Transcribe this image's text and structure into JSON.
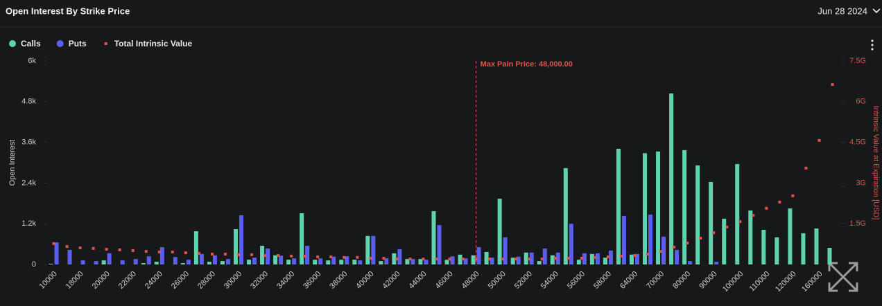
{
  "chart_data": {
    "type": "bar",
    "title": "Open Interest By Strike Price",
    "date_selector": "Jun 28 2024",
    "y_label": "Open Interest",
    "y2_label": "Intrinsic Value at Expiration [USD]",
    "categories": [
      "10000",
      null,
      "18000",
      null,
      "20000",
      null,
      "22000",
      null,
      "24000",
      null,
      "26000",
      null,
      "28000",
      null,
      "30000",
      null,
      "32000",
      null,
      "34000",
      null,
      "36000",
      null,
      "38000",
      null,
      "40000",
      null,
      "42000",
      null,
      "44000",
      null,
      "46000",
      null,
      "48000",
      null,
      "50000",
      null,
      "52000",
      null,
      "54000",
      null,
      "56000",
      null,
      "58000",
      null,
      "64000",
      null,
      "70000",
      null,
      "80000",
      null,
      "90000",
      null,
      "100000",
      null,
      "110000",
      null,
      "120000",
      null,
      "160000",
      null
    ],
    "series": [
      {
        "name": "Calls",
        "type": "bar",
        "color": "#5fd3ae",
        "values": [
          20,
          0,
          0,
          0,
          120,
          0,
          0,
          40,
          80,
          0,
          40,
          980,
          80,
          100,
          1040,
          140,
          550,
          270,
          140,
          1510,
          140,
          120,
          140,
          140,
          840,
          100,
          330,
          160,
          160,
          1570,
          140,
          290,
          270,
          370,
          1940,
          200,
          350,
          100,
          270,
          2840,
          140,
          310,
          200,
          3410,
          290,
          3280,
          3330,
          5040,
          3370,
          2920,
          2430,
          1350,
          2960,
          1590,
          1020,
          800,
          1650,
          920,
          1060,
          490
        ]
      },
      {
        "name": "Puts",
        "type": "bar",
        "color": "#5b5ef0",
        "values": [
          650,
          430,
          120,
          100,
          330,
          120,
          160,
          240,
          510,
          220,
          140,
          310,
          270,
          160,
          1450,
          200,
          470,
          260,
          180,
          550,
          180,
          230,
          240,
          120,
          840,
          180,
          450,
          160,
          140,
          1160,
          240,
          180,
          510,
          200,
          800,
          230,
          350,
          470,
          350,
          1200,
          330,
          330,
          410,
          1430,
          310,
          1470,
          820,
          430,
          100,
          0,
          80,
          0,
          0,
          0,
          0,
          0,
          0,
          0,
          0,
          0
        ]
      },
      {
        "name": "Total Intrinsic Value",
        "type": "scatter",
        "axis": "y2",
        "color": "#e0524a",
        "values": [
          770000000,
          660000000,
          610000000,
          590000000,
          560000000,
          540000000,
          510000000,
          480000000,
          460000000,
          460000000,
          430000000,
          410000000,
          380000000,
          380000000,
          360000000,
          360000000,
          330000000,
          330000000,
          310000000,
          310000000,
          280000000,
          280000000,
          260000000,
          260000000,
          230000000,
          230000000,
          200000000,
          200000000,
          200000000,
          200000000,
          200000000,
          200000000,
          200000000,
          200000000,
          200000000,
          200000000,
          200000000,
          200000000,
          230000000,
          230000000,
          230000000,
          260000000,
          280000000,
          310000000,
          330000000,
          380000000,
          480000000,
          640000000,
          790000000,
          970000000,
          1170000000,
          1380000000,
          1580000000,
          1810000000,
          2070000000,
          2300000000,
          2530000000,
          3550000000,
          4570000000,
          6630000000
        ]
      }
    ],
    "ylim": [
      0,
      6000
    ],
    "yticks": [
      0,
      {
        "value": 1200,
        "label": "1.2k"
      },
      {
        "value": 2400,
        "label": "2.4k"
      },
      {
        "value": 3600,
        "label": "3.6k"
      },
      {
        "value": 4800,
        "label": "4.8k"
      },
      {
        "value": 6000,
        "label": "6k"
      }
    ],
    "y2lim": [
      0,
      7500000000
    ],
    "y2ticks": [
      {
        "value": 1500000000,
        "label": "1.5G"
      },
      {
        "value": 3000000000,
        "label": "3G"
      },
      {
        "value": 4500000000,
        "label": "4.5G"
      },
      {
        "value": 6000000000,
        "label": "6G"
      },
      {
        "value": 7500000000,
        "label": "7.5G"
      }
    ],
    "annotations": [
      {
        "text": "Max Pain Price: 48,000.00",
        "x": "48000"
      }
    ],
    "legend": "top-left",
    "grid": false
  }
}
